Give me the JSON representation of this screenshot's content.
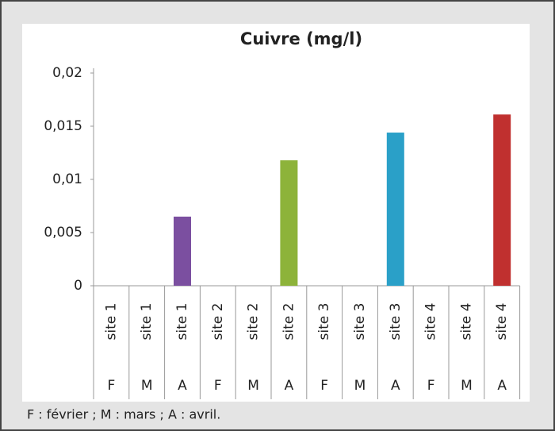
{
  "chart_data": {
    "type": "bar",
    "title": "Cuivre (mg/l)",
    "categories": [
      "site 1",
      "site 1",
      "site 1",
      "site 2",
      "site 2",
      "site 2",
      "site 3",
      "site 3",
      "site 3",
      "site 4",
      "site 4",
      "site 4"
    ],
    "months": [
      "F",
      "M",
      "A",
      "F",
      "M",
      "A",
      "F",
      "M",
      "A",
      "F",
      "M",
      "A"
    ],
    "values": [
      0,
      0,
      0.0065,
      0,
      0,
      0.0118,
      0,
      0,
      0.0144,
      0,
      0,
      0.0161
    ],
    "colors": [
      "#7b4fa0",
      "#8db33a",
      "#2aa0c8",
      "#c0302f"
    ],
    "ylim": [
      0,
      0.02
    ],
    "yticks": [
      0,
      {
        "value": 0.005,
        "label": "0,005"
      },
      {
        "value": 0.01,
        "label": "0,01"
      },
      {
        "value": 0.015,
        "label": "0,015"
      },
      {
        "value": 0.02,
        "label": "0,02"
      }
    ],
    "note": "F : février ; M : mars ; A : avril."
  }
}
